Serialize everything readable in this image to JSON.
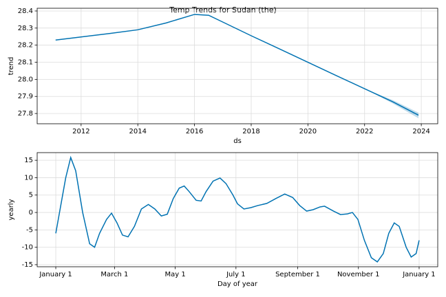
{
  "chart_data": [
    {
      "type": "line",
      "title": "Temp Trends for Sudan (the)",
      "x_label": "ds",
      "y_label": "trend",
      "x": [
        2011.1,
        2012,
        2013,
        2014,
        2015,
        2016,
        2016.5,
        2017,
        2018,
        2019,
        2020,
        2021,
        2022,
        2023,
        2023.9
      ],
      "series": [
        {
          "color": "#0072b2",
          "values": [
            28.23,
            28.248,
            28.268,
            28.29,
            28.33,
            28.38,
            28.375,
            28.335,
            28.255,
            28.178,
            28.1,
            28.022,
            27.945,
            27.868,
            27.79
          ],
          "lower": [
            28.23,
            28.248,
            28.268,
            28.29,
            28.33,
            28.38,
            28.375,
            28.335,
            28.255,
            28.178,
            28.1,
            28.022,
            27.945,
            27.858,
            27.772
          ],
          "upper": [
            28.23,
            28.248,
            28.268,
            28.29,
            28.33,
            28.38,
            28.375,
            28.335,
            28.255,
            28.178,
            28.1,
            28.022,
            27.945,
            27.878,
            27.805
          ]
        }
      ],
      "xlim": [
        2010.45,
        2024.58
      ],
      "ylim": [
        27.74,
        28.416
      ],
      "xticks": [
        2012,
        2014,
        2016,
        2018,
        2020,
        2022,
        2024
      ],
      "yticks": [
        27.8,
        27.9,
        {
          "value": 28,
          "label": "28.0"
        },
        28.1,
        28.2,
        28.3,
        28.4
      ],
      "grid": true
    },
    {
      "type": "line",
      "x_label": "Day of year",
      "y_label": "yearly",
      "x": [
        0,
        10,
        15,
        20,
        27,
        34,
        39,
        44,
        51,
        56,
        61.5,
        67,
        72.6,
        79,
        86,
        93,
        99.5,
        106,
        112,
        118,
        124,
        129,
        134,
        141,
        146,
        151,
        158,
        165,
        171,
        178,
        182.5,
        189,
        196,
        203,
        212,
        221,
        230,
        238,
        245,
        252,
        258.5,
        265.5,
        270,
        279,
        286,
        293,
        298,
        303.5,
        310,
        317,
        323,
        329,
        334.5,
        340,
        345,
        352,
        357,
        362,
        365
      ],
      "series": [
        {
          "color": "#0072b2",
          "values": [
            -6,
            10,
            15.8,
            12,
            0,
            -9,
            -10,
            -6,
            -2,
            -0.2,
            -3,
            -6.5,
            -7,
            -4,
            1,
            2.3,
            1,
            -1,
            -0.5,
            4,
            7,
            7.6,
            6,
            3.5,
            3.3,
            6,
            9,
            9.9,
            8.3,
            5,
            2.5,
            1,
            1.4,
            2,
            2.6,
            4,
            5.3,
            4.3,
            2,
            0.4,
            0.8,
            1.6,
            1.8,
            0.4,
            -0.6,
            -0.4,
            0,
            -2,
            -8,
            -13,
            -14.2,
            -11.8,
            -6,
            -3,
            -4,
            -10,
            -12.8,
            -11.8,
            -8
          ]
        }
      ],
      "xlim": [
        -18.7,
        383.7
      ],
      "ylim": [
        -15.6,
        17.2
      ],
      "xticks": [
        {
          "value": 0,
          "label": "January 1"
        },
        {
          "value": 59,
          "label": "March 1"
        },
        {
          "value": 120,
          "label": "May 1"
        },
        {
          "value": 181,
          "label": "July 1"
        },
        {
          "value": 243,
          "label": "September 1"
        },
        {
          "value": 304,
          "label": "November 1"
        },
        {
          "value": 365,
          "label": "January 1"
        }
      ],
      "yticks": [
        -15,
        -10,
        -5,
        0,
        5,
        10,
        15
      ],
      "grid": true
    }
  ]
}
